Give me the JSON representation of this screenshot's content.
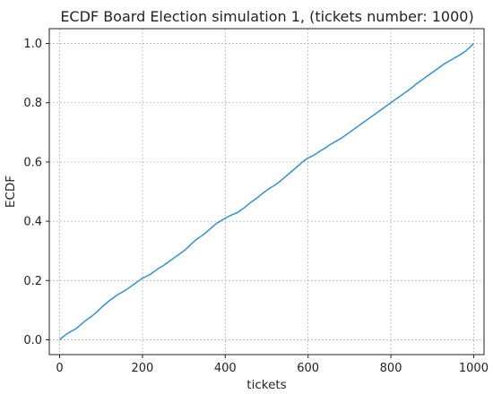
{
  "chart_data": {
    "type": "line",
    "title": "ECDF Board Election simulation 1, (tickets number: 1000)",
    "xlabel": "tickets",
    "ylabel": "ECDF",
    "xlim": [
      -25,
      1025
    ],
    "ylim": [
      -0.05,
      1.05
    ],
    "xticks": [
      0,
      200,
      400,
      600,
      800,
      1000
    ],
    "xtick_labels": [
      "0",
      "200",
      "400",
      "600",
      "800",
      "1000"
    ],
    "yticks": [
      0.0,
      0.2,
      0.4,
      0.6,
      0.8,
      1.0
    ],
    "ytick_labels": [
      "0.0",
      "0.2",
      "0.4",
      "0.6",
      "0.8",
      "1.0"
    ],
    "grid": true,
    "legend": "none",
    "series": [
      {
        "color": "#3a8fc7",
        "x": [
          0,
          10,
          20,
          30,
          40,
          50,
          60,
          70,
          80,
          90,
          100,
          110,
          120,
          130,
          140,
          150,
          160,
          170,
          180,
          190,
          200,
          210,
          220,
          230,
          240,
          250,
          260,
          270,
          280,
          290,
          300,
          310,
          320,
          330,
          340,
          350,
          360,
          370,
          380,
          390,
          400,
          410,
          420,
          430,
          440,
          450,
          460,
          470,
          480,
          490,
          500,
          510,
          520,
          530,
          540,
          550,
          560,
          570,
          580,
          590,
          600,
          610,
          620,
          630,
          640,
          650,
          660,
          670,
          680,
          690,
          700,
          710,
          720,
          730,
          740,
          750,
          760,
          770,
          780,
          790,
          800,
          810,
          820,
          830,
          840,
          850,
          860,
          870,
          880,
          890,
          900,
          910,
          920,
          930,
          940,
          950,
          960,
          970,
          980,
          990,
          1000
        ],
        "y": [
          0.0,
          0.012,
          0.022,
          0.03,
          0.038,
          0.05,
          0.062,
          0.072,
          0.082,
          0.094,
          0.108,
          0.12,
          0.132,
          0.142,
          0.152,
          0.16,
          0.168,
          0.178,
          0.188,
          0.198,
          0.208,
          0.214,
          0.222,
          0.232,
          0.242,
          0.25,
          0.26,
          0.27,
          0.28,
          0.29,
          0.3,
          0.312,
          0.326,
          0.338,
          0.348,
          0.358,
          0.37,
          0.382,
          0.394,
          0.402,
          0.41,
          0.418,
          0.424,
          0.43,
          0.44,
          0.45,
          0.462,
          0.472,
          0.482,
          0.494,
          0.504,
          0.514,
          0.522,
          0.532,
          0.544,
          0.556,
          0.568,
          0.58,
          0.592,
          0.604,
          0.614,
          0.62,
          0.628,
          0.638,
          0.646,
          0.656,
          0.664,
          0.672,
          0.68,
          0.69,
          0.7,
          0.71,
          0.72,
          0.73,
          0.74,
          0.75,
          0.76,
          0.77,
          0.78,
          0.79,
          0.8,
          0.81,
          0.82,
          0.83,
          0.84,
          0.85,
          0.862,
          0.872,
          0.882,
          0.892,
          0.902,
          0.912,
          0.922,
          0.932,
          0.94,
          0.948,
          0.956,
          0.964,
          0.974,
          0.986,
          1.0
        ]
      }
    ]
  }
}
